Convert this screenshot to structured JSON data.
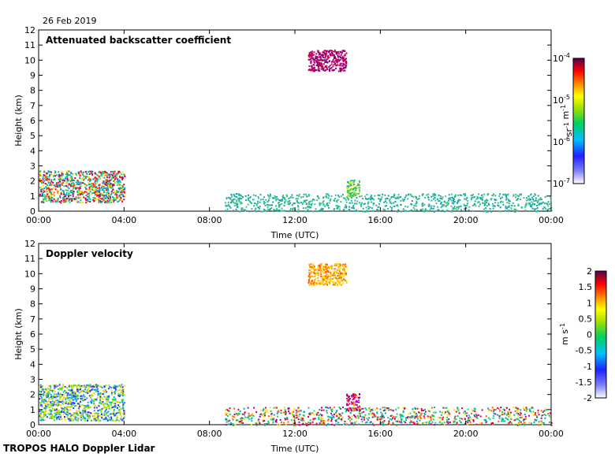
{
  "header": {
    "date": "26 Feb 2019"
  },
  "footer": {
    "label": "TROPOS HALO Doppler Lidar"
  },
  "chart_data": [
    {
      "type": "heatmap",
      "title": "Attenuated backscatter coefficient",
      "xlabel": "Time (UTC)",
      "ylabel": "Height (km)",
      "x_ticks": [
        "00:00",
        "04:00",
        "08:00",
        "12:00",
        "16:00",
        "20:00",
        "00:00"
      ],
      "xlim_hours": [
        0,
        24
      ],
      "y_ticks": [
        "0",
        "1",
        "2",
        "3",
        "4",
        "5",
        "6",
        "7",
        "8",
        "9",
        "10",
        "11",
        "12"
      ],
      "ylim": [
        0,
        12
      ],
      "colorbar": {
        "label_parts": [
          "sr",
          "-1",
          " m",
          "-1"
        ],
        "scale": "log",
        "range": [
          1e-07,
          0.0001
        ],
        "ticks": [
          {
            "base": "10",
            "exp": "-4",
            "value": -4
          },
          {
            "base": "10",
            "exp": "-5",
            "value": -5
          },
          {
            "base": "10",
            "exp": "-6",
            "value": -6
          },
          {
            "base": "10",
            "exp": "-7",
            "value": -7
          }
        ]
      },
      "features": [
        {
          "desc": "boundary layer aerosol",
          "t0": 0.0,
          "t1": 4.0,
          "h0": 0.6,
          "h1": 2.7,
          "c": "mixed"
        },
        {
          "desc": "residual layer",
          "t0": 8.7,
          "t1": 24.0,
          "h0": 0.0,
          "h1": 1.2,
          "c": "teal"
        },
        {
          "desc": "cloud",
          "t0": 14.4,
          "t1": 15.0,
          "h0": 1.0,
          "h1": 2.1,
          "c": "green"
        },
        {
          "desc": "cirrus",
          "t0": 12.6,
          "t1": 14.4,
          "h0": 9.3,
          "h1": 10.7,
          "c": "magenta"
        }
      ]
    },
    {
      "type": "heatmap",
      "title": "Doppler velocity",
      "xlabel": "Time (UTC)",
      "ylabel": "Height (km)",
      "x_ticks": [
        "00:00",
        "04:00",
        "08:00",
        "12:00",
        "16:00",
        "20:00",
        "00:00"
      ],
      "xlim_hours": [
        0,
        24
      ],
      "y_ticks": [
        "0",
        "1",
        "2",
        "3",
        "4",
        "5",
        "6",
        "7",
        "8",
        "9",
        "10",
        "11",
        "12"
      ],
      "ylim": [
        0,
        12
      ],
      "colorbar": {
        "label_parts": [
          "m s",
          "-1"
        ],
        "scale": "linear",
        "range": [
          -2,
          2
        ],
        "ticks": [
          "2",
          "1.5",
          "1",
          "0.5",
          "0",
          "-0.5",
          "-1",
          "-1.5",
          "-2"
        ]
      },
      "features": [
        {
          "desc": "boundary layer",
          "t0": 0.0,
          "t1": 4.0,
          "h0": 0.3,
          "h1": 2.7,
          "c": "greenblue"
        },
        {
          "desc": "convective layer",
          "t0": 8.7,
          "t1": 24.0,
          "h0": 0.0,
          "h1": 1.2,
          "c": "mixed"
        },
        {
          "desc": "cloud",
          "t0": 14.4,
          "t1": 15.0,
          "h0": 1.0,
          "h1": 2.1,
          "c": "purple"
        },
        {
          "desc": "cirrus",
          "t0": 12.6,
          "t1": 14.4,
          "h0": 9.3,
          "h1": 10.7,
          "c": "orange"
        }
      ]
    }
  ]
}
